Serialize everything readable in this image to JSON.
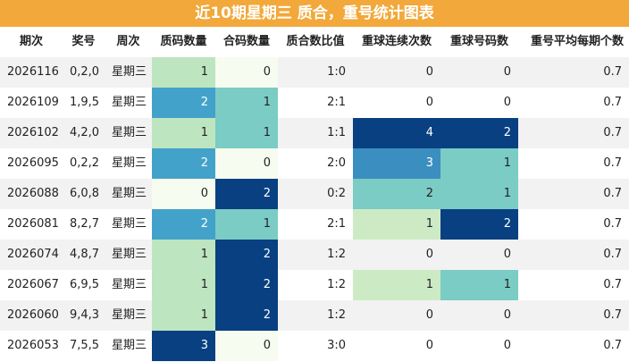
{
  "title": "近10期星期三 质合，重号统计图表",
  "table": {
    "header": [
      "期次",
      "奖号",
      "周次",
      "质码数量",
      "合码数量",
      "质合数比值",
      "重球连续次数",
      "重球号码数",
      "重号平均每期个数"
    ],
    "rows": [
      [
        "2026116",
        "0,2,0",
        "星期三",
        1,
        0,
        "1:0",
        0,
        0,
        0.7
      ],
      [
        "2026109",
        "1,9,5",
        "星期三",
        2,
        1,
        "2:1",
        0,
        0,
        0.7
      ],
      [
        "2026102",
        "4,2,0",
        "星期三",
        1,
        1,
        "1:1",
        4,
        2,
        0.7
      ],
      [
        "2026095",
        "0,2,2",
        "星期三",
        2,
        0,
        "2:0",
        3,
        1,
        0.7
      ],
      [
        "2026088",
        "6,0,8",
        "星期三",
        0,
        2,
        "0:2",
        2,
        1,
        0.7
      ],
      [
        "2026081",
        "8,2,7",
        "星期三",
        2,
        1,
        "2:1",
        1,
        2,
        0.7
      ],
      [
        "2026074",
        "4,8,7",
        "星期三",
        1,
        2,
        "1:2",
        0,
        0,
        0.7
      ],
      [
        "2026067",
        "6,9,5",
        "星期三",
        1,
        2,
        "1:2",
        1,
        1,
        0.7
      ],
      [
        "2026060",
        "9,4,3",
        "星期三",
        1,
        2,
        "1:2",
        0,
        0,
        0.7
      ],
      [
        "2026053",
        "7,5,5",
        "星期三",
        3,
        0,
        "3:0",
        0,
        0,
        0.7
      ]
    ],
    "scales": [
      null,
      null,
      null,
      [
        "#f7fcf0",
        "#bde5bf",
        "#43a2ca",
        "#084081"
      ],
      [
        "#f7fcf0",
        "#7bccc4",
        "#084081"
      ],
      null,
      [
        null,
        "#ccebc5",
        "#7bccc4",
        "#3a8fc0",
        "#084081"
      ],
      [
        null,
        "#7bccc4",
        "#084081"
      ],
      null
    ]
  }
}
